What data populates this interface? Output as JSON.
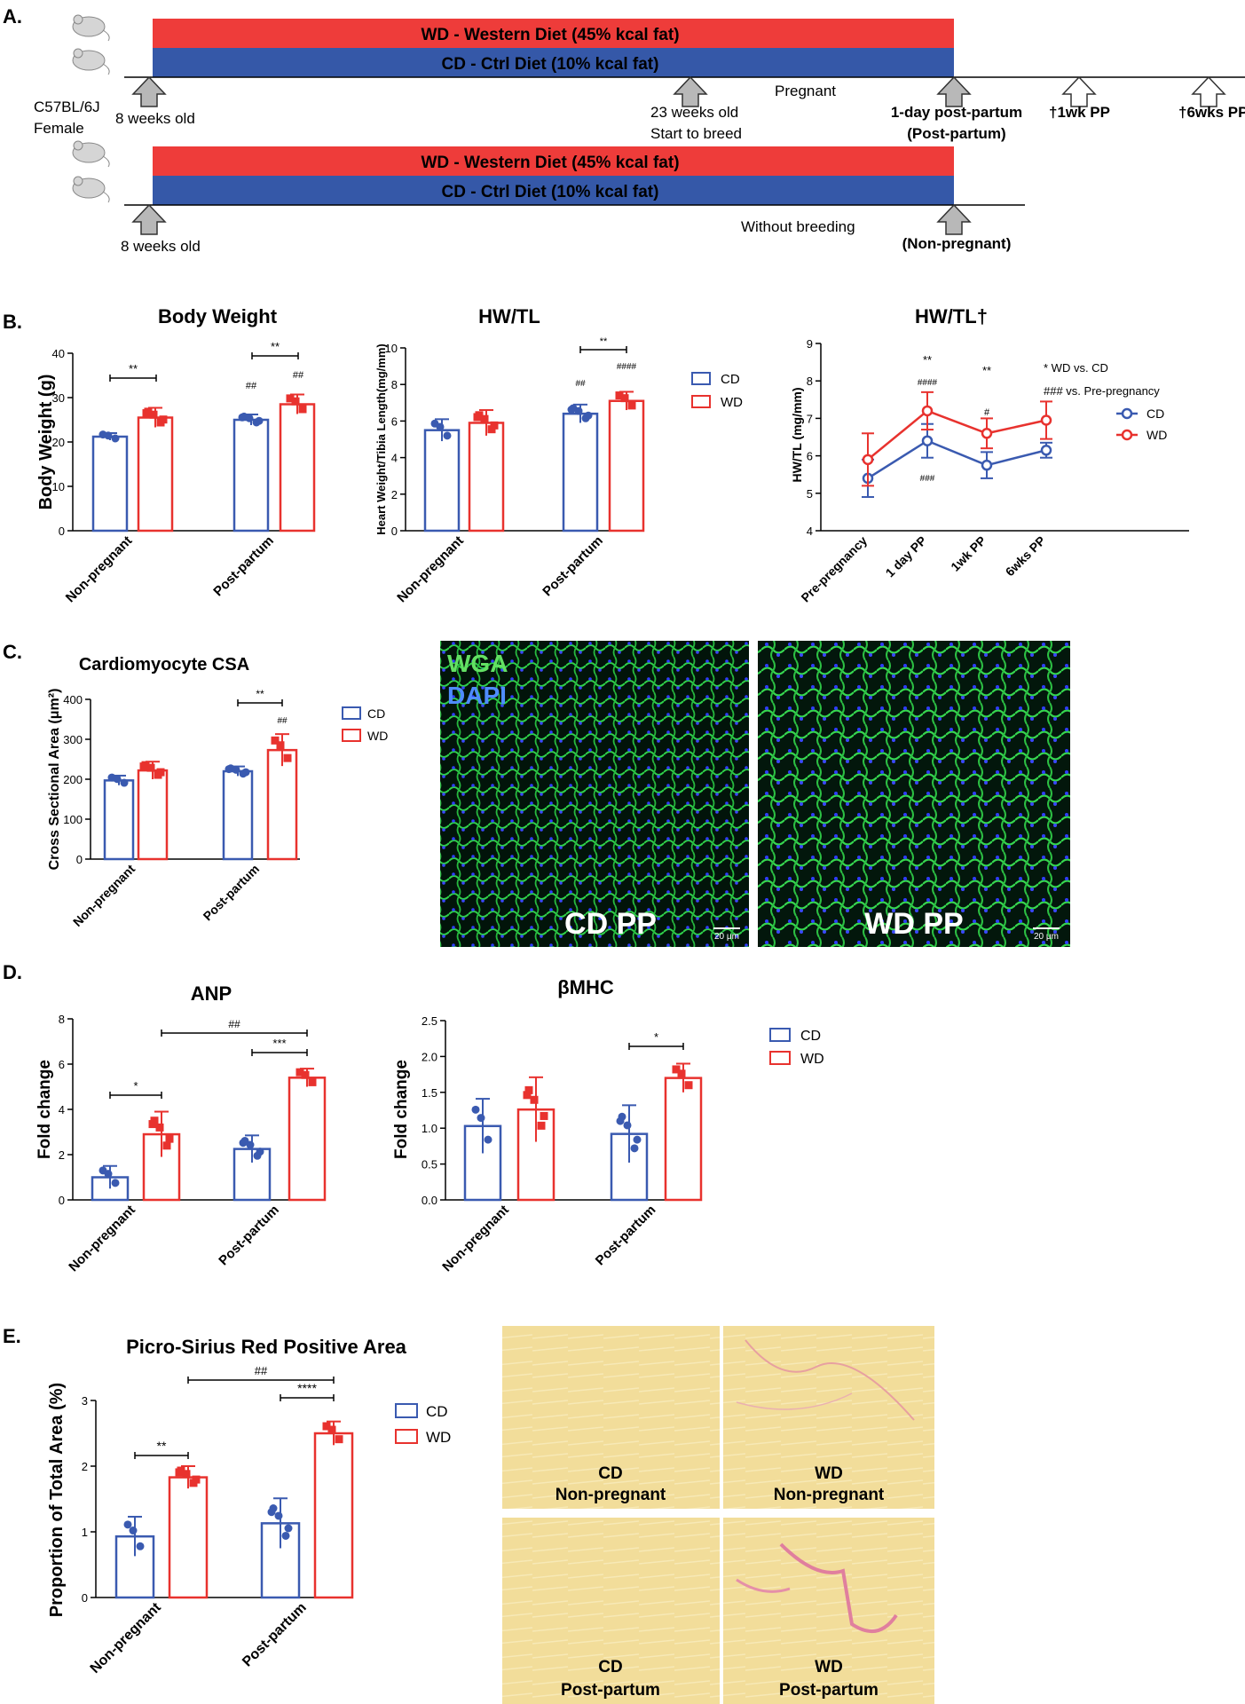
{
  "colors": {
    "cd": "#3a5ab0",
    "wd": "#e8322e",
    "cd_band": "#3558a8",
    "wd_band": "#ee3c3a",
    "arrow_gray": "#b8b8b8"
  },
  "panel_a": {
    "letter": "A.",
    "strain": [
      "C57BL/6J",
      "Female"
    ],
    "wd_band": "WD - Western Diet (45% kcal fat)",
    "cd_band": "CD - Ctrl Diet (10% kcal fat)",
    "top": {
      "start": "8 weeks old",
      "breed": [
        "23 weeks old",
        "Start to breed"
      ],
      "pregnant": "Pregnant",
      "pp": [
        "1-day post-partum",
        "(Post-partum)"
      ],
      "wk1": "†1wk PP",
      "wk6": "†6wks PP"
    },
    "bottom": {
      "start": "8 weeks old",
      "nobreed": "Without breeding",
      "np": "(Non-pregnant)"
    }
  },
  "panel_b": {
    "letter": "B."
  },
  "panel_c": {
    "letter": "C.",
    "img_labels": {
      "wga": "WGA",
      "dapi": "DAPI",
      "cd": "CD PP",
      "wd": "WD PP",
      "scale": "20 μm"
    }
  },
  "panel_d": {
    "letter": "D."
  },
  "panel_e": {
    "letter": "E.",
    "img_labels": [
      [
        "CD",
        "Non-pregnant"
      ],
      [
        "WD",
        "Non-pregnant"
      ],
      [
        "CD",
        "Post-partum"
      ],
      [
        "WD",
        "Post-partum"
      ]
    ]
  },
  "legend": {
    "cd": "CD",
    "wd": "WD"
  },
  "chart_data": [
    {
      "id": "bw",
      "type": "bar",
      "title": "Body Weight",
      "ylabel": "Body Weight (g)",
      "xlabel": "",
      "categories": [
        "Non-pregnant",
        "Post-partum"
      ],
      "ylim": [
        0,
        40
      ],
      "yticks": [
        0,
        10,
        20,
        30,
        40
      ],
      "series": [
        {
          "name": "CD",
          "values": [
            21.2,
            25.0
          ],
          "errors": [
            0.8,
            1.2
          ]
        },
        {
          "name": "WD",
          "values": [
            25.5,
            28.5
          ],
          "errors": [
            2.2,
            2.2
          ]
        }
      ],
      "annotations": [
        "**",
        "**",
        "##",
        "##"
      ]
    },
    {
      "id": "hwtl",
      "type": "bar",
      "title": "HW/TL",
      "ylabel": "Heart Weight/Tibia Length(mg/mm)",
      "xlabel": "",
      "categories": [
        "Non-pregnant",
        "Post-partum"
      ],
      "ylim": [
        0,
        10
      ],
      "yticks": [
        0,
        2,
        4,
        6,
        8,
        10
      ],
      "series": [
        {
          "name": "CD",
          "values": [
            5.5,
            6.4
          ],
          "errors": [
            0.6,
            0.5
          ]
        },
        {
          "name": "WD",
          "values": [
            5.9,
            7.1
          ],
          "errors": [
            0.7,
            0.5
          ]
        }
      ],
      "annotations": [
        "**",
        "##",
        "####"
      ]
    },
    {
      "id": "hwtl2",
      "type": "line",
      "title": "HW/TL†",
      "ylabel": "HW/TL (mg/mm)",
      "xlabel": "",
      "categories": [
        "Pre-pregnancy",
        "1 day PP",
        "1wk PP",
        "6wks PP"
      ],
      "ylim": [
        4,
        9
      ],
      "yticks": [
        4,
        5,
        6,
        7,
        8,
        9
      ],
      "series": [
        {
          "name": "CD",
          "values": [
            5.4,
            6.4,
            5.75,
            6.15
          ],
          "errors": [
            0.5,
            0.45,
            0.35,
            0.2
          ]
        },
        {
          "name": "WD",
          "values": [
            5.9,
            7.2,
            6.6,
            6.95
          ],
          "errors": [
            0.7,
            0.5,
            0.4,
            0.5
          ]
        }
      ],
      "annotations": [
        "**",
        "####",
        "###",
        "**",
        "#"
      ],
      "key_notes": [
        "* WD vs. CD",
        "### vs. Pre-pregnancy"
      ]
    },
    {
      "id": "csa",
      "type": "bar",
      "title": "Cardiomyocyte CSA",
      "ylabel": "Cross Sectional Area (μm²)",
      "xlabel": "",
      "categories": [
        "Non-pregnant",
        "Post-partum"
      ],
      "ylim": [
        0,
        400
      ],
      "yticks": [
        0,
        100,
        200,
        300,
        400
      ],
      "series": [
        {
          "name": "CD",
          "values": [
            197,
            220
          ],
          "errors": [
            12,
            12
          ]
        },
        {
          "name": "WD",
          "values": [
            222,
            273
          ],
          "errors": [
            22,
            40
          ]
        }
      ],
      "annotations": [
        "**",
        "##"
      ]
    },
    {
      "id": "anp",
      "type": "bar",
      "title": "ANP",
      "ylabel": "Fold change",
      "xlabel": "",
      "categories": [
        "Non-pregnant",
        "Post-partum"
      ],
      "ylim": [
        0,
        8
      ],
      "yticks": [
        0,
        2,
        4,
        6,
        8
      ],
      "series": [
        {
          "name": "CD",
          "values": [
            1.0,
            2.25
          ],
          "errors": [
            0.5,
            0.6
          ]
        },
        {
          "name": "WD",
          "values": [
            2.9,
            5.4
          ],
          "errors": [
            1.0,
            0.4
          ]
        }
      ],
      "annotations": [
        "*",
        "***",
        "##"
      ]
    },
    {
      "id": "bmhc",
      "type": "bar",
      "title": "βMHC",
      "ylabel": "Fold change",
      "xlabel": "",
      "categories": [
        "Non-pregnant",
        "Post-partum"
      ],
      "ylim": [
        0,
        2.5
      ],
      "yticks": [
        0.0,
        0.5,
        1.0,
        1.5,
        2.0,
        2.5
      ],
      "series": [
        {
          "name": "CD",
          "values": [
            1.03,
            0.92
          ],
          "errors": [
            0.38,
            0.4
          ]
        },
        {
          "name": "WD",
          "values": [
            1.26,
            1.7
          ],
          "errors": [
            0.45,
            0.2
          ]
        }
      ],
      "annotations": [
        "*"
      ]
    },
    {
      "id": "psr",
      "type": "bar",
      "title": "Picro-Sirius Red Positive Area",
      "ylabel": "Proportion of Total Area (%)",
      "xlabel": "",
      "categories": [
        "Non-pregnant",
        "Post-partum"
      ],
      "ylim": [
        0,
        3
      ],
      "yticks": [
        0,
        1,
        2,
        3
      ],
      "series": [
        {
          "name": "CD",
          "values": [
            0.93,
            1.13
          ],
          "errors": [
            0.3,
            0.38
          ]
        },
        {
          "name": "WD",
          "values": [
            1.83,
            2.5
          ],
          "errors": [
            0.17,
            0.18
          ]
        }
      ],
      "annotations": [
        "**",
        "****",
        "##"
      ]
    }
  ]
}
